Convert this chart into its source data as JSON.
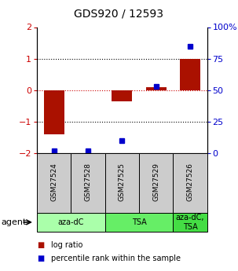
{
  "title": "GDS920 / 12593",
  "samples": [
    "GSM27524",
    "GSM27528",
    "GSM27525",
    "GSM27529",
    "GSM27526"
  ],
  "log_ratios": [
    -1.4,
    0.0,
    -0.35,
    0.1,
    1.0
  ],
  "percentile_ranks": [
    2,
    2,
    10,
    53,
    85
  ],
  "bar_color": "#aa1100",
  "square_color": "#0000cc",
  "ylim_left": [
    -2,
    2
  ],
  "ylim_right": [
    0,
    100
  ],
  "yticks_left": [
    -2,
    -1,
    0,
    1,
    2
  ],
  "yticks_right": [
    0,
    25,
    50,
    75,
    100
  ],
  "ytick_labels_right": [
    "0",
    "25",
    "50",
    "75",
    "100%"
  ],
  "groups": [
    {
      "label": "aza-dC",
      "samples": [
        0,
        1
      ],
      "color": "#aaffaa"
    },
    {
      "label": "TSA",
      "samples": [
        2,
        3
      ],
      "color": "#66ee66"
    },
    {
      "label": "aza-dC,\nTSA",
      "samples": [
        4
      ],
      "color": "#44dd44"
    }
  ],
  "legend_items": [
    {
      "color": "#aa1100",
      "label": "log ratio"
    },
    {
      "color": "#0000cc",
      "label": "percentile rank within the sample"
    }
  ],
  "zero_line_color": "#cc0000",
  "grid_line_color": "#000000",
  "bar_width": 0.6,
  "agent_label": "agent",
  "sample_bg_color": "#cccccc",
  "background_color": "#ffffff"
}
